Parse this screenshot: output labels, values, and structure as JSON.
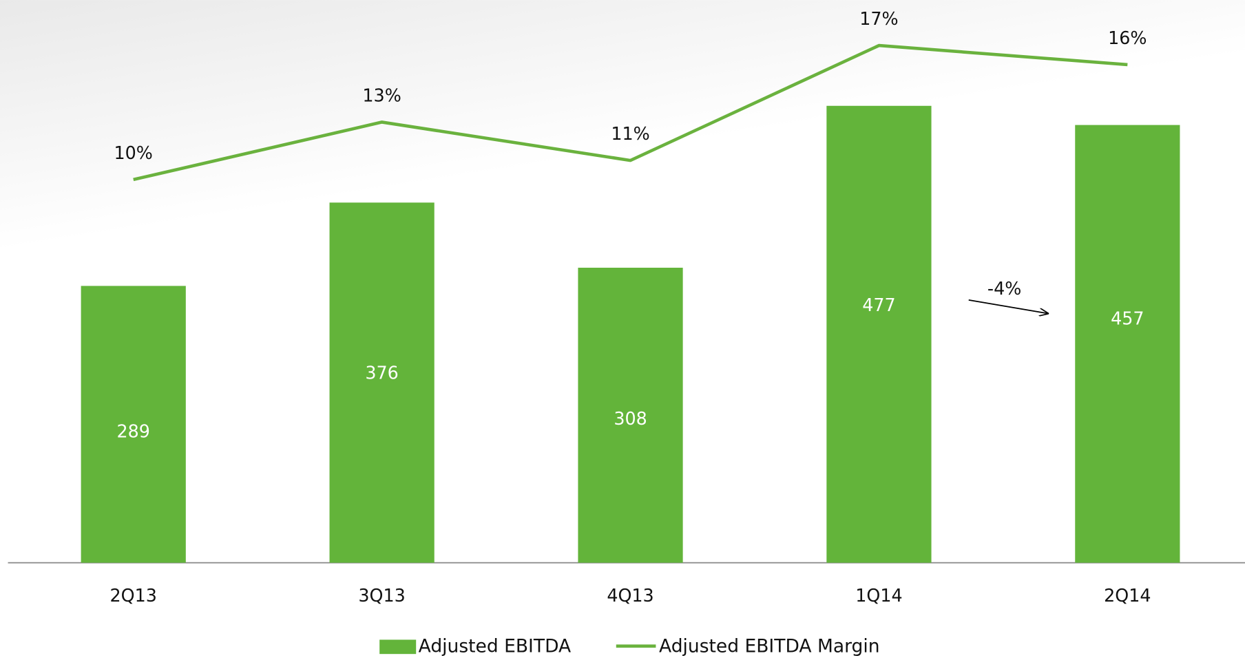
{
  "chart_data": {
    "type": "bar",
    "categories": [
      "2Q13",
      "3Q13",
      "4Q13",
      "1Q14",
      "2Q14"
    ],
    "ylim": [
      0,
      580
    ],
    "y2lim": [
      -10,
      19
    ],
    "series": [
      {
        "name": "Adjusted EBITDA",
        "type": "bar",
        "color": "#63b43a",
        "values": [
          289,
          376,
          308,
          477,
          457
        ]
      },
      {
        "name": "Adjusted EBITDA Margin",
        "type": "line",
        "axis": "y2",
        "color": "#6ab23e",
        "values": [
          10,
          13,
          11,
          17,
          16
        ],
        "value_labels": [
          "10%",
          "13%",
          "11%",
          "17%",
          "16%"
        ]
      }
    ],
    "annotations": [
      {
        "text": "-4%"
      }
    ],
    "legend": "bottom"
  }
}
